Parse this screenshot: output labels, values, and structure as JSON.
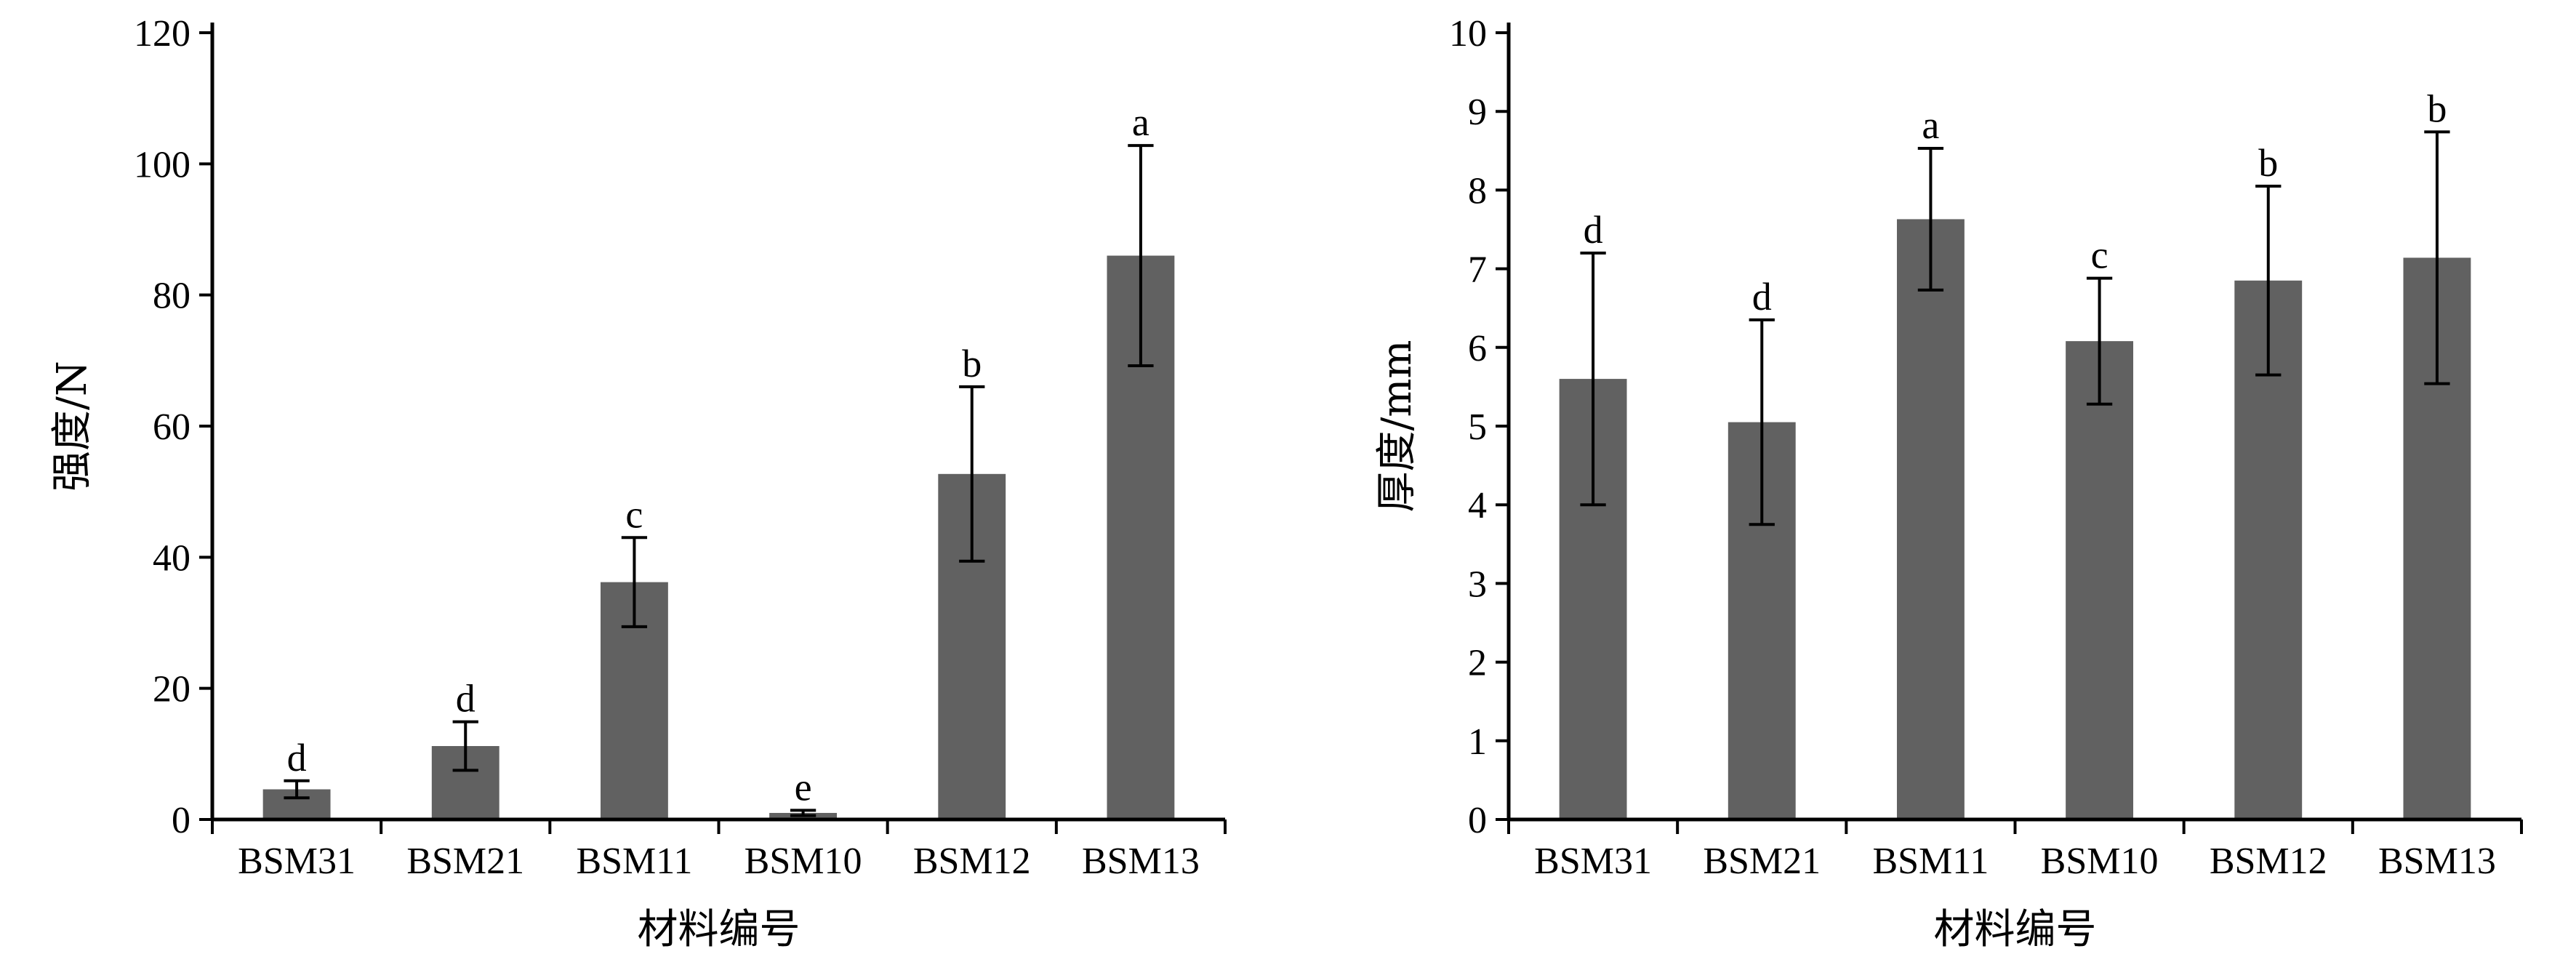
{
  "chart_data": [
    {
      "type": "bar",
      "xlabel": "材料编号",
      "ylabel": "强度/N",
      "ylim": [
        0,
        120
      ],
      "yticks": [
        0,
        20,
        40,
        60,
        80,
        100,
        120
      ],
      "categories": [
        "BSM31",
        "BSM21",
        "BSM11",
        "BSM10",
        "BSM12",
        "BSM13"
      ],
      "values": [
        4.6,
        11.2,
        36.2,
        1.0,
        52.7,
        86.0
      ],
      "errors": [
        1.3,
        3.7,
        6.8,
        0.4,
        13.3,
        16.8
      ],
      "significance": [
        "d",
        "d",
        "c",
        "e",
        "b",
        "a"
      ],
      "bar_color": "#616161",
      "grid": false
    },
    {
      "type": "bar",
      "xlabel": "材料编号",
      "ylabel": "厚度/mm",
      "ylim": [
        0,
        10
      ],
      "yticks": [
        0,
        1,
        2,
        3,
        4,
        5,
        6,
        7,
        8,
        9,
        10
      ],
      "categories": [
        "BSM31",
        "BSM21",
        "BSM11",
        "BSM10",
        "BSM12",
        "BSM13"
      ],
      "values": [
        5.6,
        5.05,
        7.63,
        6.08,
        6.85,
        7.14
      ],
      "errors": [
        1.6,
        1.3,
        0.9,
        0.8,
        1.2,
        1.6
      ],
      "significance": [
        "d",
        "d",
        "a",
        "c",
        "b",
        "b"
      ],
      "bar_color": "#616161",
      "grid": false
    }
  ]
}
